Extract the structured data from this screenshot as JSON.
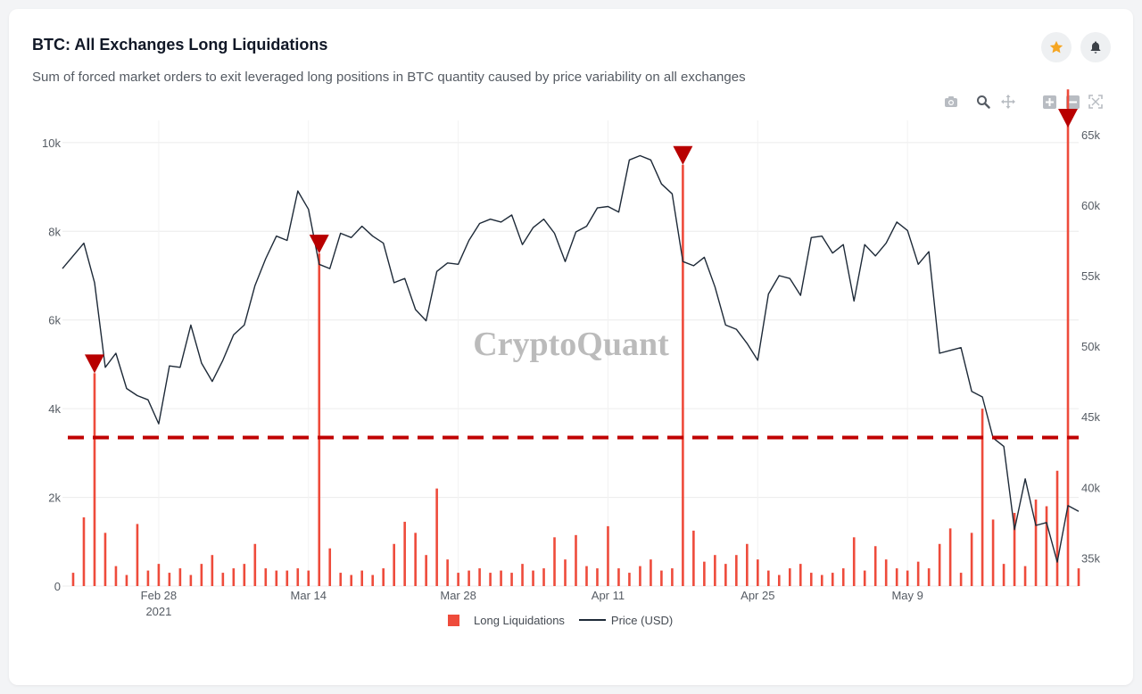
{
  "header": {
    "title": "BTC: All Exchanges Long Liquidations",
    "subtitle": "Sum of forced market orders to exit leveraged long positions in BTC quantity caused by price variability on all exchanges"
  },
  "toolbar": {
    "icons": [
      "star-icon",
      "bell-icon",
      "camera-icon",
      "zoom-icon",
      "pan-icon",
      "zoom-in-icon",
      "zoom-out-icon",
      "autoscale-icon"
    ]
  },
  "watermark": "CryptoQuant",
  "colors": {
    "liquidations": "#ee4b3b",
    "price": "#1e2a38",
    "marker": "#b80000",
    "threshold": "#c00000",
    "star": "#f5a623"
  },
  "chart_data": {
    "type": "bar+line",
    "x_range": [
      "2021-02-19",
      "2021-05-25"
    ],
    "x_ticks": [
      {
        "date": "2021-02-28",
        "label": "Feb 28",
        "sublabel": "2021"
      },
      {
        "date": "2021-03-14",
        "label": "Mar 14"
      },
      {
        "date": "2021-03-28",
        "label": "Mar 28"
      },
      {
        "date": "2021-04-11",
        "label": "Apr 11"
      },
      {
        "date": "2021-04-25",
        "label": "Apr 25"
      },
      {
        "date": "2021-05-09",
        "label": "May 9"
      }
    ],
    "y_left": {
      "range": [
        0,
        10500
      ],
      "ticks": [
        0,
        2000,
        4000,
        6000,
        8000,
        10000
      ],
      "tick_labels": [
        "0",
        "2k",
        "4k",
        "6k",
        "8k",
        "10k"
      ]
    },
    "y_right": {
      "range": [
        33000,
        66000
      ],
      "ticks": [
        35000,
        40000,
        45000,
        50000,
        55000,
        60000,
        65000
      ],
      "tick_labels": [
        "35k",
        "40k",
        "45k",
        "50k",
        "55k",
        "60k",
        "65k"
      ]
    },
    "grid": true,
    "legend_placement": "bottom-center",
    "series": [
      {
        "name": "Long Liquidations",
        "kind": "bar",
        "axis": "left",
        "points": [
          [
            "2021-02-20",
            300
          ],
          [
            "2021-02-21",
            1550
          ],
          [
            "2021-02-22",
            4800
          ],
          [
            "2021-02-23",
            1200
          ],
          [
            "2021-02-24",
            450
          ],
          [
            "2021-02-25",
            250
          ],
          [
            "2021-02-26",
            1400
          ],
          [
            "2021-02-27",
            350
          ],
          [
            "2021-02-28",
            500
          ],
          [
            "2021-03-01",
            300
          ],
          [
            "2021-03-02",
            400
          ],
          [
            "2021-03-03",
            250
          ],
          [
            "2021-03-04",
            500
          ],
          [
            "2021-03-05",
            700
          ],
          [
            "2021-03-06",
            300
          ],
          [
            "2021-03-07",
            400
          ],
          [
            "2021-03-08",
            500
          ],
          [
            "2021-03-09",
            950
          ],
          [
            "2021-03-10",
            400
          ],
          [
            "2021-03-11",
            350
          ],
          [
            "2021-03-12",
            350
          ],
          [
            "2021-03-13",
            400
          ],
          [
            "2021-03-14",
            350
          ],
          [
            "2021-03-15",
            7500
          ],
          [
            "2021-03-16",
            850
          ],
          [
            "2021-03-17",
            300
          ],
          [
            "2021-03-18",
            250
          ],
          [
            "2021-03-19",
            350
          ],
          [
            "2021-03-20",
            250
          ],
          [
            "2021-03-21",
            400
          ],
          [
            "2021-03-22",
            950
          ],
          [
            "2021-03-23",
            1450
          ],
          [
            "2021-03-24",
            1200
          ],
          [
            "2021-03-25",
            700
          ],
          [
            "2021-03-26",
            2200
          ],
          [
            "2021-03-27",
            600
          ],
          [
            "2021-03-28",
            300
          ],
          [
            "2021-03-29",
            350
          ],
          [
            "2021-03-30",
            400
          ],
          [
            "2021-03-31",
            300
          ],
          [
            "2021-04-01",
            350
          ],
          [
            "2021-04-02",
            300
          ],
          [
            "2021-04-03",
            500
          ],
          [
            "2021-04-04",
            350
          ],
          [
            "2021-04-05",
            400
          ],
          [
            "2021-04-06",
            1100
          ],
          [
            "2021-04-07",
            600
          ],
          [
            "2021-04-08",
            1150
          ],
          [
            "2021-04-09",
            450
          ],
          [
            "2021-04-10",
            400
          ],
          [
            "2021-04-11",
            1350
          ],
          [
            "2021-04-12",
            400
          ],
          [
            "2021-04-13",
            300
          ],
          [
            "2021-04-14",
            450
          ],
          [
            "2021-04-15",
            600
          ],
          [
            "2021-04-16",
            350
          ],
          [
            "2021-04-17",
            400
          ],
          [
            "2021-04-18",
            9500
          ],
          [
            "2021-04-19",
            1250
          ],
          [
            "2021-04-20",
            550
          ],
          [
            "2021-04-21",
            700
          ],
          [
            "2021-04-22",
            500
          ],
          [
            "2021-04-23",
            700
          ],
          [
            "2021-04-24",
            950
          ],
          [
            "2021-04-25",
            600
          ],
          [
            "2021-04-26",
            350
          ],
          [
            "2021-04-27",
            250
          ],
          [
            "2021-04-28",
            400
          ],
          [
            "2021-04-29",
            500
          ],
          [
            "2021-04-30",
            300
          ],
          [
            "2021-05-01",
            250
          ],
          [
            "2021-05-02",
            300
          ],
          [
            "2021-05-03",
            400
          ],
          [
            "2021-05-04",
            1100
          ],
          [
            "2021-05-05",
            350
          ],
          [
            "2021-05-06",
            900
          ],
          [
            "2021-05-07",
            600
          ],
          [
            "2021-05-08",
            400
          ],
          [
            "2021-05-09",
            350
          ],
          [
            "2021-05-10",
            550
          ],
          [
            "2021-05-11",
            400
          ],
          [
            "2021-05-12",
            950
          ],
          [
            "2021-05-13",
            1300
          ],
          [
            "2021-05-14",
            300
          ],
          [
            "2021-05-15",
            1200
          ],
          [
            "2021-05-16",
            4000
          ],
          [
            "2021-05-17",
            1500
          ],
          [
            "2021-05-18",
            500
          ],
          [
            "2021-05-19",
            1650
          ],
          [
            "2021-05-20",
            450
          ],
          [
            "2021-05-21",
            1950
          ],
          [
            "2021-05-22",
            1800
          ],
          [
            "2021-05-23",
            2600
          ],
          [
            "2021-05-24",
            11200
          ],
          [
            "2021-05-25",
            400
          ]
        ]
      },
      {
        "name": "Price (USD)",
        "kind": "line",
        "axis": "right",
        "points": [
          [
            "2021-02-19",
            55500
          ],
          [
            "2021-02-21",
            57300
          ],
          [
            "2021-02-22",
            54500
          ],
          [
            "2021-02-23",
            48500
          ],
          [
            "2021-02-24",
            49500
          ],
          [
            "2021-02-25",
            47000
          ],
          [
            "2021-02-26",
            46500
          ],
          [
            "2021-02-27",
            46200
          ],
          [
            "2021-02-28",
            44500
          ],
          [
            "2021-03-01",
            48600
          ],
          [
            "2021-03-02",
            48500
          ],
          [
            "2021-03-03",
            51500
          ],
          [
            "2021-03-04",
            48800
          ],
          [
            "2021-03-05",
            47500
          ],
          [
            "2021-03-06",
            49000
          ],
          [
            "2021-03-07",
            50800
          ],
          [
            "2021-03-08",
            51500
          ],
          [
            "2021-03-09",
            54300
          ],
          [
            "2021-03-10",
            56200
          ],
          [
            "2021-03-11",
            57800
          ],
          [
            "2021-03-12",
            57500
          ],
          [
            "2021-03-13",
            61000
          ],
          [
            "2021-03-14",
            59700
          ],
          [
            "2021-03-15",
            55800
          ],
          [
            "2021-03-16",
            55500
          ],
          [
            "2021-03-17",
            58000
          ],
          [
            "2021-03-18",
            57700
          ],
          [
            "2021-03-19",
            58500
          ],
          [
            "2021-03-20",
            57800
          ],
          [
            "2021-03-21",
            57300
          ],
          [
            "2021-03-22",
            54500
          ],
          [
            "2021-03-23",
            54800
          ],
          [
            "2021-03-24",
            52600
          ],
          [
            "2021-03-25",
            51800
          ],
          [
            "2021-03-26",
            55300
          ],
          [
            "2021-03-27",
            55900
          ],
          [
            "2021-03-28",
            55800
          ],
          [
            "2021-03-29",
            57500
          ],
          [
            "2021-03-30",
            58700
          ],
          [
            "2021-03-31",
            59000
          ],
          [
            "2021-04-01",
            58800
          ],
          [
            "2021-04-02",
            59300
          ],
          [
            "2021-04-03",
            57200
          ],
          [
            "2021-04-04",
            58400
          ],
          [
            "2021-04-05",
            59000
          ],
          [
            "2021-04-06",
            58000
          ],
          [
            "2021-04-07",
            56000
          ],
          [
            "2021-04-08",
            58100
          ],
          [
            "2021-04-09",
            58500
          ],
          [
            "2021-04-10",
            59800
          ],
          [
            "2021-04-11",
            59900
          ],
          [
            "2021-04-12",
            59500
          ],
          [
            "2021-04-13",
            63200
          ],
          [
            "2021-04-14",
            63500
          ],
          [
            "2021-04-15",
            63200
          ],
          [
            "2021-04-16",
            61500
          ],
          [
            "2021-04-17",
            60800
          ],
          [
            "2021-04-18",
            56000
          ],
          [
            "2021-04-19",
            55700
          ],
          [
            "2021-04-20",
            56300
          ],
          [
            "2021-04-21",
            54200
          ],
          [
            "2021-04-22",
            51500
          ],
          [
            "2021-04-23",
            51200
          ],
          [
            "2021-04-24",
            50200
          ],
          [
            "2021-04-25",
            49000
          ],
          [
            "2021-04-26",
            53700
          ],
          [
            "2021-04-27",
            55000
          ],
          [
            "2021-04-28",
            54800
          ],
          [
            "2021-04-29",
            53600
          ],
          [
            "2021-04-30",
            57700
          ],
          [
            "2021-05-01",
            57800
          ],
          [
            "2021-05-02",
            56600
          ],
          [
            "2021-05-03",
            57200
          ],
          [
            "2021-05-04",
            53200
          ],
          [
            "2021-05-05",
            57200
          ],
          [
            "2021-05-06",
            56400
          ],
          [
            "2021-05-07",
            57300
          ],
          [
            "2021-05-08",
            58800
          ],
          [
            "2021-05-09",
            58200
          ],
          [
            "2021-05-10",
            55800
          ],
          [
            "2021-05-11",
            56700
          ],
          [
            "2021-05-12",
            49500
          ],
          [
            "2021-05-13",
            49700
          ],
          [
            "2021-05-14",
            49900
          ],
          [
            "2021-05-15",
            46800
          ],
          [
            "2021-05-16",
            46400
          ],
          [
            "2021-05-17",
            43500
          ],
          [
            "2021-05-18",
            42900
          ],
          [
            "2021-05-19",
            37000
          ],
          [
            "2021-05-20",
            40600
          ],
          [
            "2021-05-21",
            37300
          ],
          [
            "2021-05-22",
            37500
          ],
          [
            "2021-05-23",
            34700
          ],
          [
            "2021-05-24",
            38700
          ],
          [
            "2021-05-25",
            38300
          ]
        ]
      }
    ],
    "annotations": {
      "threshold_level": 3350,
      "threshold_style": "dashed",
      "markers": [
        {
          "date": "2021-02-22",
          "value": 4800
        },
        {
          "date": "2021-03-15",
          "value": 7500
        },
        {
          "date": "2021-04-18",
          "value": 9500
        },
        {
          "date": "2021-05-24",
          "value": 11200
        }
      ]
    }
  }
}
